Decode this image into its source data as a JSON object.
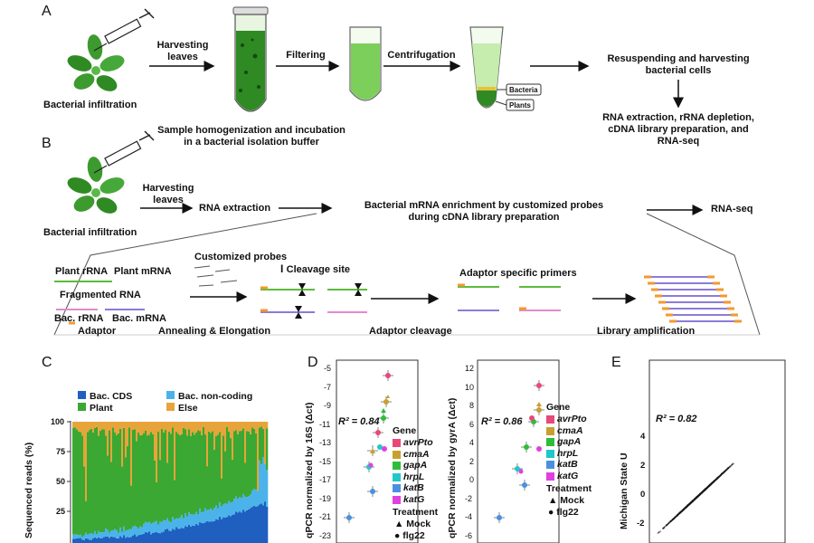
{
  "panelA": {
    "letter": "A",
    "infiltration": "Bacterial infiltration",
    "harvest": "Harvesting\nleaves",
    "filtering": "Filtering",
    "centrifugation": "Centrifugation",
    "homogenization": "Sample homogenization and incubation\nin a bacterial isolation buffer",
    "bacteria_tag": "Bacteria",
    "plants_tag": "Plants",
    "resuspend": "Resuspending and harvesting\nbacterial cells",
    "rna_steps": "RNA extraction, rRNA depletion,\ncDNA library preparation, and\nRNA-seq"
  },
  "panelB": {
    "letter": "B",
    "infiltration": "Bacterial infiltration",
    "harvest": "Harvesting\nleaves",
    "rna_extraction": "RNA extraction",
    "enrichment": "Bacterial mRNA enrichment by customized probes\nduring cDNA library preparation",
    "rnaseq": "RNA-seq",
    "custom_probes": "Customized probes",
    "cleavage_site": "Cleavage site",
    "adaptor_primers": "Adaptor specific primers",
    "plant_rrna": "Plant rRNA",
    "plant_mrna": "Plant mRNA",
    "fragmented": "Fragmented RNA",
    "bac_rrna": "Bac. rRNA",
    "bac_mrna": "Bac. mRNA",
    "adaptor": "Adaptor",
    "annealing": "Annealing & Elongation",
    "adaptor_cleavage": "Adaptor cleavage",
    "library_amp": "Library amplification"
  },
  "panelC": {
    "letter": "C",
    "legend": [
      "Bac. CDS",
      "Bac. non-coding",
      "Plant",
      "Else"
    ],
    "ylabel": "Sequenced reads (%)",
    "yticks": [
      "100",
      "75",
      "50",
      "25"
    ],
    "colors": {
      "cds": "#1f5fbf",
      "noncoding": "#4cb3ea",
      "plant": "#3aa832",
      "else": "#e7a43a"
    }
  },
  "panelD": {
    "letter": "D",
    "left": {
      "ylabel": "qPCR normalized by 16S (Δct)",
      "yticks": [
        "-5",
        "-7",
        "-9",
        "-11",
        "-13",
        "-15",
        "-17",
        "-19",
        "-21",
        "-23"
      ],
      "r2": "R² = 0.84"
    },
    "right": {
      "ylabel": "qPCR normalized by gyrA (Δct)",
      "yticks": [
        "12",
        "10",
        "8",
        "6",
        "4",
        "2",
        "0",
        "-2",
        "-4",
        "-6"
      ],
      "r2": "R² = 0.86"
    },
    "gene_title": "Gene",
    "genes": [
      {
        "name": "avrPto",
        "color": "#e8487a"
      },
      {
        "name": "cmaA",
        "color": "#c8a030"
      },
      {
        "name": "gapA",
        "color": "#2ebd3a"
      },
      {
        "name": "hrpL",
        "color": "#20c8c8"
      },
      {
        "name": "katB",
        "color": "#4a90e0"
      },
      {
        "name": "katG",
        "color": "#e040e0"
      }
    ],
    "treatment_title": "Treatment",
    "treatments": [
      {
        "symbol": "▲",
        "name": "Mock"
      },
      {
        "symbol": "●",
        "name": "flg22"
      }
    ]
  },
  "panelE": {
    "letter": "E",
    "r2": "R² = 0.82",
    "ylabel": "Michigan State U",
    "yticks": [
      "4",
      "2",
      "0",
      "-2"
    ]
  }
}
